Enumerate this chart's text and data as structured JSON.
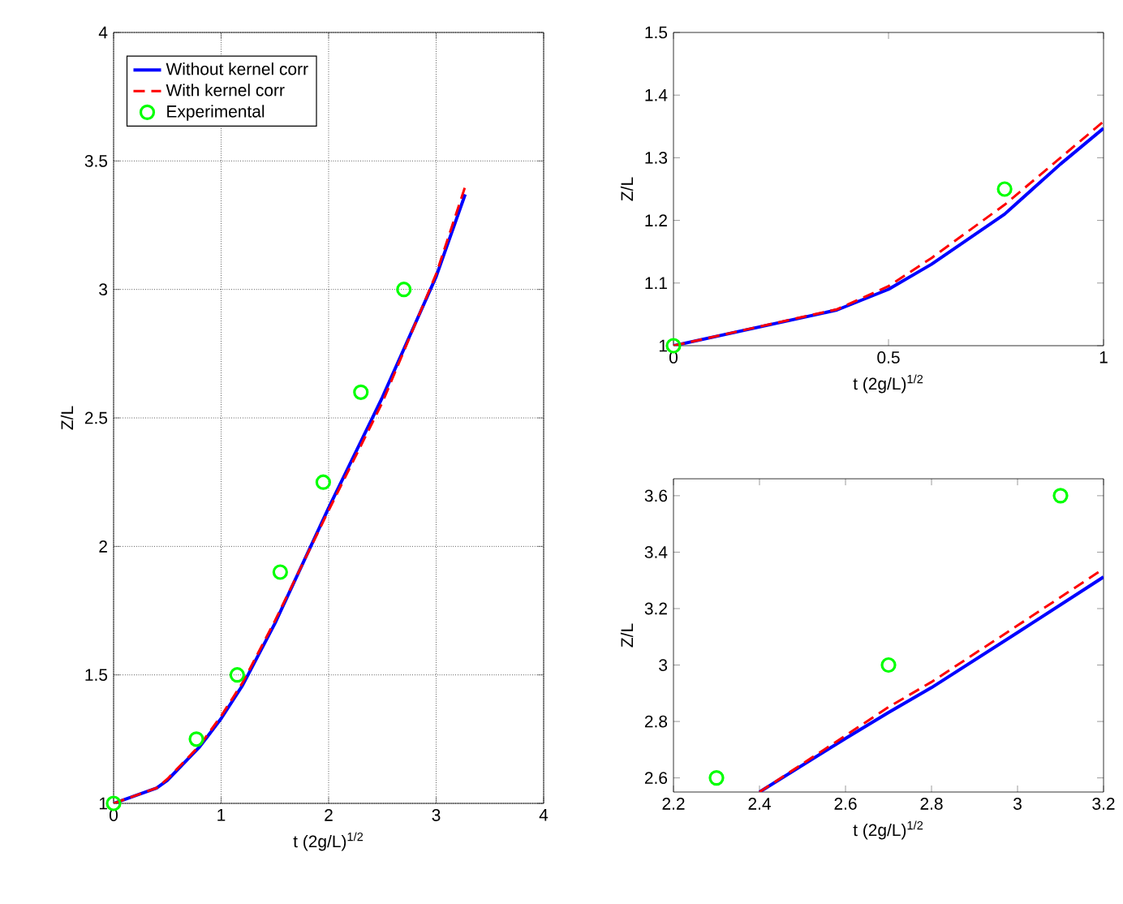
{
  "chart_data": [
    {
      "type": "line",
      "xlabel": "t (2g/L)$^{1/2}$",
      "ylabel": "Z/L",
      "xlim": [
        0,
        4
      ],
      "ylim": [
        1,
        4
      ],
      "xticks": [
        0,
        1,
        2,
        3,
        4
      ],
      "yticks": [
        1,
        1.5,
        2,
        2.5,
        3,
        3.5,
        4
      ],
      "grid": true,
      "legend": "top left",
      "series": [
        {
          "name": "Without kernel corr",
          "color": "#0000ff",
          "line_style": "solid",
          "marker": "none",
          "x": [
            0,
            0.4,
            0.5,
            0.8,
            1,
            1.2,
            1.5,
            2,
            2.5,
            3,
            3.27
          ],
          "values": [
            1,
            1.06,
            1.09,
            1.22,
            1.33,
            1.46,
            1.7,
            2.15,
            2.58,
            3.05,
            3.37
          ]
        },
        {
          "name": "With kernel corr",
          "color": "#ff0000",
          "line_style": "dashed",
          "marker": "none",
          "x": [
            0,
            0.4,
            0.5,
            0.8,
            1,
            1.2,
            1.5,
            2,
            2.5,
            3,
            3.27
          ],
          "values": [
            1,
            1.06,
            1.095,
            1.225,
            1.34,
            1.47,
            1.71,
            2.14,
            2.56,
            3.06,
            3.4
          ]
        },
        {
          "name": "Experimental",
          "type": "scatter",
          "color": "#00ff00",
          "marker": "circle",
          "x": [
            0,
            0.77,
            1.15,
            1.55,
            1.95,
            2.3,
            2.7
          ],
          "values": [
            1,
            1.25,
            1.5,
            1.9,
            2.25,
            2.6,
            3.0
          ]
        }
      ]
    },
    {
      "type": "line",
      "xlabel": "t (2g/L)$^{1/2}$",
      "ylabel": "Z/L",
      "xlim": [
        0,
        1
      ],
      "ylim": [
        1,
        1.5
      ],
      "xticks": [
        0,
        0.5,
        1
      ],
      "yticks": [
        1,
        1.1,
        1.2,
        1.3,
        1.4,
        1.5
      ],
      "series": [
        {
          "color": "#0000ff",
          "line_style": "solid",
          "marker": "none",
          "x": [
            0,
            0.38,
            0.5,
            0.6,
            0.77,
            0.9,
            1
          ],
          "values": [
            1,
            1.057,
            1.09,
            1.13,
            1.21,
            1.29,
            1.347
          ]
        },
        {
          "color": "#ff0000",
          "line_style": "dashed",
          "marker": "none",
          "x": [
            0,
            0.38,
            0.5,
            0.6,
            0.77,
            0.9,
            1
          ],
          "values": [
            1,
            1.058,
            1.095,
            1.14,
            1.225,
            1.3,
            1.358
          ]
        },
        {
          "type": "scatter",
          "color": "#00ff00",
          "marker": "circle",
          "x": [
            0,
            0.77
          ],
          "values": [
            1,
            1.25
          ]
        }
      ]
    },
    {
      "type": "line",
      "xlabel": "t (2g/L)$^{1/2}$",
      "ylabel": "Z/L",
      "xlim": [
        2.2,
        3.2
      ],
      "ylim": [
        2.55,
        3.66
      ],
      "xticks": [
        2.2,
        2.4,
        2.6,
        2.8,
        3,
        3.2
      ],
      "yticks": [
        2.6,
        2.8,
        3,
        3.2,
        3.4,
        3.6
      ],
      "series": [
        {
          "color": "#0000ff",
          "line_style": "solid",
          "marker": "none",
          "x": [
            2.4,
            2.6,
            2.7,
            2.8,
            3,
            3.2
          ],
          "values": [
            2.55,
            2.74,
            2.832,
            2.92,
            3.115,
            3.312
          ]
        },
        {
          "color": "#ff0000",
          "line_style": "dashed",
          "marker": "none",
          "x": [
            2.4,
            2.6,
            2.7,
            2.8,
            3,
            3.2
          ],
          "values": [
            2.55,
            2.75,
            2.851,
            2.94,
            3.14,
            3.341
          ]
        },
        {
          "type": "scatter",
          "color": "#00ff00",
          "marker": "circle",
          "x": [
            2.3,
            2.7,
            3.1
          ],
          "values": [
            2.6,
            3.0,
            3.6
          ]
        }
      ]
    }
  ]
}
